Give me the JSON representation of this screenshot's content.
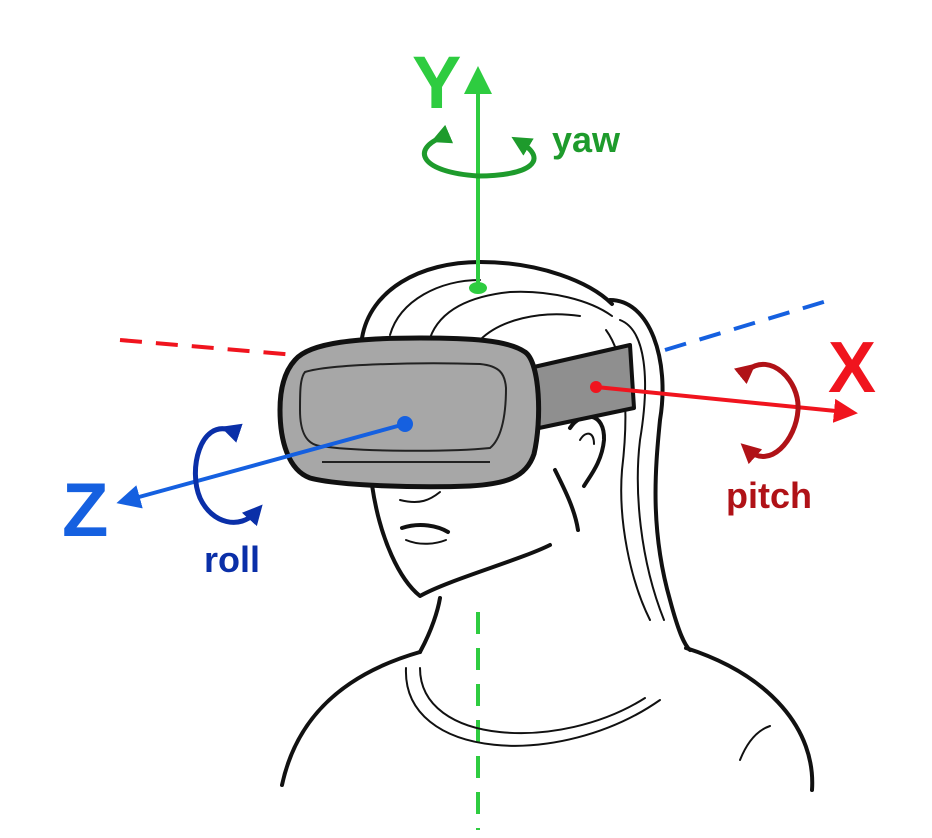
{
  "axes": {
    "y": {
      "letter": "Y",
      "rotation": "yaw",
      "color": "#2ecc40",
      "rotation_color": "#1e9b2c"
    },
    "x": {
      "letter": "X",
      "rotation": "pitch",
      "color": "#f0141e",
      "rotation_color": "#b01217"
    },
    "z": {
      "letter": "Z",
      "rotation": "roll",
      "color": "#1560e0",
      "rotation_color": "#0a2fa8"
    }
  },
  "headset": {
    "body_color": "#a7a7a7",
    "strap_color": "#8f8f8f"
  }
}
